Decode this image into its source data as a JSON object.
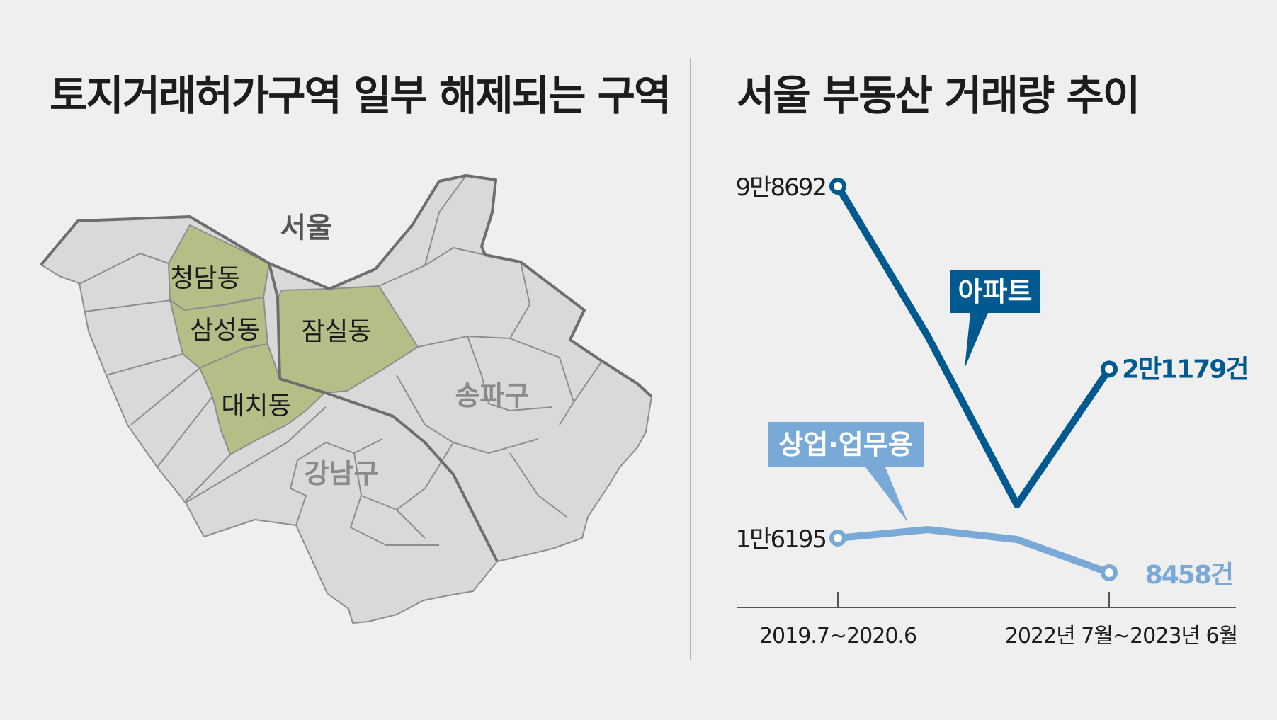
{
  "titles": {
    "left": "토지거래허가구역 일부 해제되는 구역",
    "right": "서울 부동산 거래량 추이"
  },
  "map": {
    "city_label": "서울",
    "districts": [
      "강남구",
      "송파구"
    ],
    "highlighted_dongs": [
      "청담동",
      "삼성동",
      "대치동",
      "잠실동"
    ],
    "colors": {
      "district": "#d9d9d9",
      "highlight": "#b3bf87",
      "border": "#6e6e6e"
    }
  },
  "chart_data": {
    "type": "line",
    "title": "서울 부동산 거래량 추이",
    "categories": [
      "2019.7~2020.6",
      "2022년 7월~2023년 6월"
    ],
    "series": [
      {
        "name": "아파트",
        "values": [
          98692,
          21179
        ],
        "start_label": "9만8692",
        "end_label": "2만1179건",
        "color": "#005a8f"
      },
      {
        "name": "상업·업무용",
        "values": [
          16195,
          8458
        ],
        "start_label": "1만6195",
        "end_label": "8458건",
        "color": "#79a9d6"
      }
    ],
    "grid": false
  }
}
